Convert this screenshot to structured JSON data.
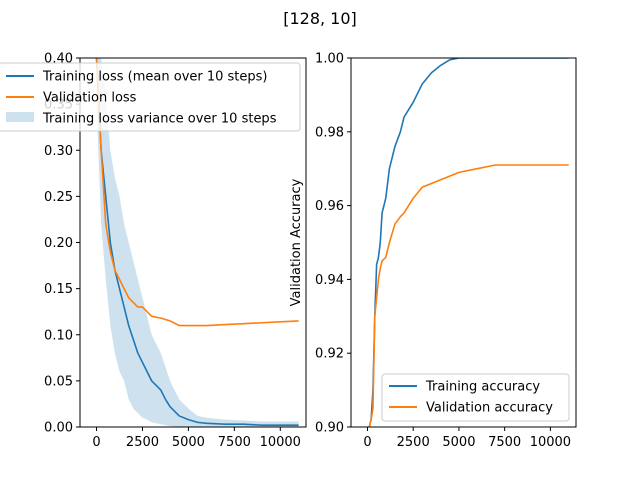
{
  "figure": {
    "title": "[128, 10]"
  },
  "colors": {
    "blue": "#1f77b4",
    "orange": "#ff7f0e",
    "band": "#c6dcec"
  },
  "chart_data": [
    {
      "type": "line",
      "title": "",
      "xlabel": "",
      "ylabel": "",
      "xlim": [
        -900,
        11400
      ],
      "ylim": [
        0.0,
        0.4
      ],
      "xticks": [
        0,
        2500,
        5000,
        7500,
        10000
      ],
      "yticks": [
        0.0,
        0.05,
        0.1,
        0.15,
        0.2,
        0.25,
        0.3,
        0.35,
        0.4
      ],
      "ytick_labels": [
        "0.00",
        "0.05",
        "0.10",
        "0.15",
        "0.20",
        "0.25",
        "0.30",
        "0.35",
        "0.40"
      ],
      "legend_position": "top-left",
      "grid": false,
      "series": [
        {
          "name": "Training loss (mean over 10 steps)",
          "x": [
            0,
            250,
            500,
            750,
            1000,
            1250,
            1500,
            1750,
            2000,
            2250,
            2500,
            2750,
            3000,
            3250,
            3500,
            3750,
            4000,
            4500,
            5000,
            5500,
            6000,
            7000,
            8000,
            9000,
            10000,
            11000
          ],
          "values": [
            0.4,
            0.3,
            0.25,
            0.2,
            0.17,
            0.15,
            0.13,
            0.11,
            0.095,
            0.08,
            0.07,
            0.06,
            0.05,
            0.045,
            0.04,
            0.03,
            0.022,
            0.012,
            0.008,
            0.005,
            0.004,
            0.003,
            0.003,
            0.002,
            0.002,
            0.002
          ]
        },
        {
          "name": "Validation loss",
          "x": [
            0,
            250,
            500,
            750,
            1000,
            1250,
            1500,
            1750,
            2000,
            2250,
            2500,
            2750,
            3000,
            3500,
            4000,
            4500,
            5000,
            5500,
            6000,
            7000,
            8000,
            9000,
            10000,
            11000
          ],
          "values": [
            0.4,
            0.3,
            0.22,
            0.19,
            0.17,
            0.16,
            0.15,
            0.14,
            0.135,
            0.13,
            0.13,
            0.125,
            0.12,
            0.118,
            0.115,
            0.11,
            0.11,
            0.11,
            0.11,
            0.111,
            0.112,
            0.113,
            0.114,
            0.115
          ]
        }
      ],
      "band": {
        "name": "Training loss variance over 10 steps",
        "x": [
          0,
          250,
          500,
          750,
          1000,
          1250,
          1500,
          1750,
          2000,
          2250,
          2500,
          2750,
          3000,
          3250,
          3500,
          3750,
          4000,
          4500,
          5000,
          5500,
          6000,
          7000,
          8000,
          9000,
          10000,
          11000
        ],
        "lower": [
          0.35,
          0.22,
          0.16,
          0.11,
          0.08,
          0.06,
          0.05,
          0.03,
          0.02,
          0.015,
          0.01,
          0.008,
          0.005,
          0.004,
          0.003,
          0.002,
          0.001,
          0.0,
          0.0,
          0.0,
          0.0,
          0.0,
          0.0,
          0.0,
          0.0,
          0.0
        ],
        "upper": [
          0.4,
          0.4,
          0.36,
          0.3,
          0.27,
          0.25,
          0.22,
          0.2,
          0.18,
          0.16,
          0.14,
          0.12,
          0.1,
          0.09,
          0.08,
          0.065,
          0.05,
          0.03,
          0.02,
          0.012,
          0.01,
          0.008,
          0.007,
          0.006,
          0.006,
          0.006
        ]
      }
    },
    {
      "type": "line",
      "title": "",
      "xlabel": "",
      "ylabel": "Validation Accuracy",
      "xlim": [
        -900,
        11400
      ],
      "ylim": [
        0.9,
        1.0
      ],
      "xticks": [
        0,
        2500,
        5000,
        7500,
        10000
      ],
      "yticks": [
        0.9,
        0.92,
        0.94,
        0.96,
        0.98,
        1.0
      ],
      "ytick_labels": [
        "0.90",
        "0.92",
        "0.94",
        "0.96",
        "0.98",
        "1.00"
      ],
      "legend_position": "lower-right",
      "grid": false,
      "series": [
        {
          "name": "Training accuracy",
          "x": [
            0,
            200,
            300,
            400,
            500,
            600,
            700,
            800,
            1000,
            1200,
            1500,
            1800,
            2000,
            2500,
            3000,
            3500,
            4000,
            4500,
            5000,
            6000,
            7000,
            8000,
            9000,
            10000,
            11000
          ],
          "values": [
            0.898,
            0.902,
            0.91,
            0.93,
            0.944,
            0.946,
            0.95,
            0.958,
            0.962,
            0.97,
            0.976,
            0.98,
            0.984,
            0.988,
            0.993,
            0.996,
            0.998,
            0.9995,
            1.0,
            1.0,
            1.0,
            1.0,
            1.0,
            1.0,
            1.0
          ]
        },
        {
          "name": "Validation accuracy",
          "x": [
            0,
            200,
            300,
            400,
            500,
            600,
            700,
            800,
            1000,
            1200,
            1500,
            1800,
            2000,
            2500,
            3000,
            3500,
            4000,
            4500,
            5000,
            6000,
            7000,
            8000,
            9000,
            10000,
            11000
          ],
          "values": [
            0.898,
            0.902,
            0.905,
            0.93,
            0.935,
            0.94,
            0.943,
            0.945,
            0.946,
            0.95,
            0.955,
            0.957,
            0.958,
            0.962,
            0.965,
            0.966,
            0.967,
            0.968,
            0.969,
            0.97,
            0.971,
            0.971,
            0.971,
            0.971,
            0.971
          ]
        }
      ]
    }
  ]
}
